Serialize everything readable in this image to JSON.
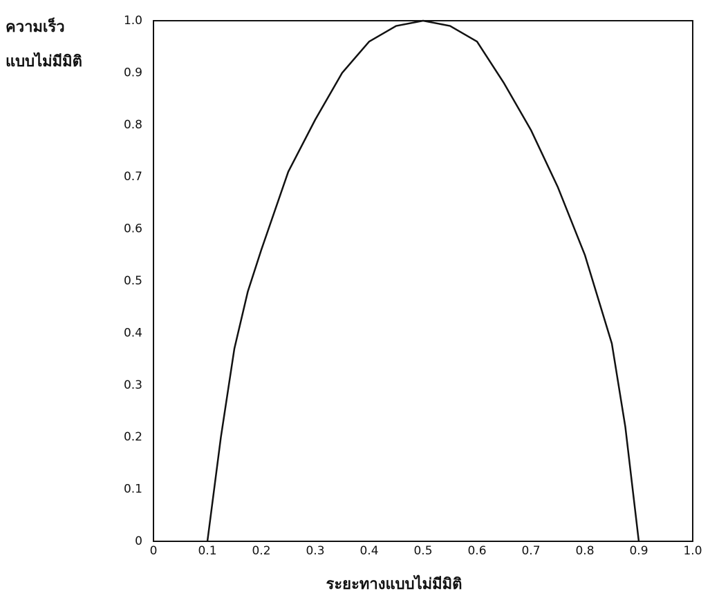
{
  "chart_data": {
    "type": "line",
    "xlabel": "ระยะทางแบบไม่มีมิติ",
    "ylabel": [
      "ความเร็ว",
      "แบบไม่มีมิติ"
    ],
    "x": [
      0.1,
      0.125,
      0.15,
      0.175,
      0.2,
      0.25,
      0.3,
      0.35,
      0.4,
      0.45,
      0.5,
      0.55,
      0.6,
      0.65,
      0.7,
      0.75,
      0.8,
      0.85,
      0.875,
      0.9
    ],
    "series": [
      {
        "color": "#111111",
        "values": [
          0,
          0.2,
          0.37,
          0.48,
          0.56,
          0.71,
          0.81,
          0.9,
          0.96,
          0.99,
          1.0,
          0.99,
          0.96,
          0.88,
          0.79,
          0.68,
          0.55,
          0.38,
          0.22,
          0
        ]
      }
    ],
    "xlim": [
      0,
      1
    ],
    "ylim": [
      0,
      1
    ],
    "xticks": [
      0,
      0.1,
      0.2,
      0.3,
      0.4,
      0.5,
      0.6,
      0.7,
      0.8,
      0.9,
      {
        "value": 1,
        "label": "1.0"
      }
    ],
    "yticks": [
      0,
      0.1,
      0.2,
      0.3,
      0.4,
      0.5,
      0.6,
      0.7,
      0.8,
      0.9,
      {
        "value": 1,
        "label": "1.0"
      }
    ]
  }
}
